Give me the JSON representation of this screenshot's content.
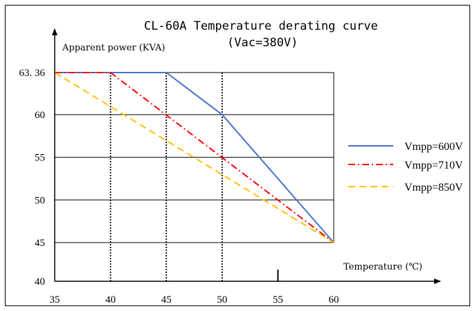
{
  "chart_data": {
    "type": "line",
    "title": "CL-60A Temperature derating curve",
    "subtitle": "(Vac=380V)",
    "ylabel": "Apparent power (KVA)",
    "xlabel": "Temperature (℃)",
    "x_ticks": [
      "35",
      "40",
      "45",
      "50",
      "55",
      "60"
    ],
    "y_ticks": [
      "40",
      "45",
      "50",
      "55",
      "60",
      "63.36"
    ],
    "xlim": [
      35,
      60
    ],
    "ylim": [
      40,
      63.36
    ],
    "grid": true,
    "legend_position": "right",
    "series": [
      {
        "name": "Vmpp=600V",
        "color": "#4472C4",
        "style": "solid",
        "points": [
          [
            35,
            63.36
          ],
          [
            45,
            63.36
          ],
          [
            50,
            60
          ],
          [
            60,
            45
          ]
        ]
      },
      {
        "name": "Vmpp=710V",
        "color": "#FF0000",
        "style": "dashdot",
        "points": [
          [
            35,
            63.36
          ],
          [
            40,
            63.36
          ],
          [
            60,
            45
          ]
        ]
      },
      {
        "name": "Vmpp=850V",
        "color": "#FFC000",
        "style": "dashed",
        "points": [
          [
            35,
            63.36
          ],
          [
            60,
            45
          ]
        ]
      }
    ],
    "reference_lines_x": [
      40,
      45,
      50
    ]
  }
}
